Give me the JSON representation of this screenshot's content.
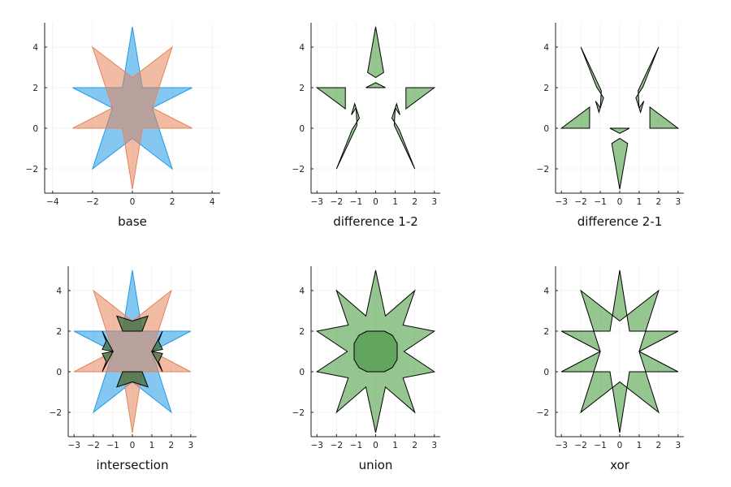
{
  "figure": {
    "colors": {
      "blue": "#1f9be8",
      "orange": "#e6835a",
      "green": "#4fa046",
      "outline": "#000000",
      "grid": "#ebebeb",
      "axis": "#222222"
    }
  },
  "chart_data": [
    {
      "type": "area",
      "xlabel": "base",
      "xlim": [
        -4.4,
        4.4
      ],
      "ylim": [
        -3.2,
        5.2
      ],
      "xticks": [
        -4,
        -2,
        0,
        2,
        4
      ],
      "yticks": [
        -2,
        0,
        2,
        4
      ],
      "grid": true,
      "legend": "none",
      "series": [
        {
          "color": "#1f9be8",
          "points": [
            [
              0,
              5
            ],
            [
              0.5,
              2
            ],
            [
              3,
              2
            ],
            [
              1,
              1
            ],
            [
              2,
              -2
            ],
            [
              0,
              -0.5
            ],
            [
              -2,
              -2
            ],
            [
              -1,
              1
            ],
            [
              -3,
              2
            ],
            [
              -0.5,
              2
            ]
          ]
        },
        {
          "color": "#e6835a",
          "points": [
            [
              0,
              -3
            ],
            [
              0.5,
              0
            ],
            [
              3,
              0
            ],
            [
              1,
              1
            ],
            [
              2,
              4
            ],
            [
              0,
              2.5
            ],
            [
              -2,
              4
            ],
            [
              -1,
              1
            ],
            [
              -3,
              0
            ],
            [
              -0.5,
              0
            ]
          ]
        }
      ]
    },
    {
      "type": "area",
      "xlabel": "difference 1-2",
      "xlim": [
        -3.3,
        3.3
      ],
      "ylim": [
        -3.2,
        5.2
      ],
      "xticks": [
        -3,
        -2,
        -1,
        0,
        1,
        2,
        3
      ],
      "yticks": [
        -2,
        0,
        2,
        4
      ],
      "grid": true,
      "legend": "none",
      "series": [
        {
          "color": "#4fa046",
          "polygons": [
            [
              [
                0,
                5
              ],
              [
                0.41,
                2.75
              ],
              [
                0,
                2.5
              ],
              [
                -0.41,
                2.75
              ]
            ],
            [
              [
                0,
                2.25
              ],
              [
                0.5,
                2
              ],
              [
                -0.5,
                2
              ]
            ],
            [
              [
                1.55,
                2
              ],
              [
                3,
                2
              ],
              [
                1.55,
                0.96
              ]
            ],
            [
              [
                1.07,
                1.21
              ],
              [
                1.24,
                0.66
              ],
              [
                1.0,
                1.0
              ]
            ],
            [
              [
                0.83,
                0.5
              ],
              [
                1.0,
                1.0
              ],
              [
                0.95,
                0.15
              ],
              [
                2,
                -2
              ],
              [
                1.2,
                -0.05
              ]
            ],
            [
              [
                -1.55,
                2
              ],
              [
                -3,
                2
              ],
              [
                -1.55,
                0.96
              ]
            ],
            [
              [
                -1.07,
                1.21
              ],
              [
                -1.24,
                0.66
              ],
              [
                -1.0,
                1.0
              ]
            ],
            [
              [
                -0.83,
                0.5
              ],
              [
                -1.0,
                1.0
              ],
              [
                -0.95,
                0.15
              ],
              [
                -2,
                -2
              ],
              [
                -1.2,
                -0.05
              ]
            ]
          ]
        }
      ]
    },
    {
      "type": "area",
      "xlabel": "difference 2-1",
      "xlim": [
        -3.3,
        3.3
      ],
      "ylim": [
        -3.2,
        5.2
      ],
      "xticks": [
        -3,
        -2,
        -1,
        0,
        1,
        2,
        3
      ],
      "yticks": [
        -2,
        0,
        2,
        4
      ],
      "grid": true,
      "legend": "none",
      "series": [
        {
          "color": "#4fa046",
          "polygons": [
            [
              [
                0,
                -3
              ],
              [
                0.41,
                -0.75
              ],
              [
                0,
                -0.5
              ],
              [
                -0.41,
                -0.75
              ]
            ],
            [
              [
                0,
                -0.25
              ],
              [
                0.5,
                0
              ],
              [
                -0.5,
                0
              ]
            ],
            [
              [
                1.55,
                0
              ],
              [
                3,
                0
              ],
              [
                1.55,
                1.04
              ]
            ],
            [
              [
                1.07,
                0.79
              ],
              [
                1.24,
                1.34
              ],
              [
                1.0,
                1.0
              ]
            ],
            [
              [
                0.83,
                1.5
              ],
              [
                1.0,
                1.0
              ],
              [
                0.95,
                1.85
              ],
              [
                2,
                4
              ],
              [
                1.2,
                2.05
              ]
            ],
            [
              [
                -1.55,
                0
              ],
              [
                -3,
                0
              ],
              [
                -1.55,
                1.04
              ]
            ],
            [
              [
                -1.07,
                0.79
              ],
              [
                -1.24,
                1.34
              ],
              [
                -1.0,
                1.0
              ]
            ],
            [
              [
                -0.83,
                1.5
              ],
              [
                -1.0,
                1.0
              ],
              [
                -0.95,
                1.85
              ],
              [
                -2,
                4
              ],
              [
                -1.2,
                2.05
              ]
            ]
          ]
        }
      ]
    },
    {
      "type": "area",
      "xlabel": "intersection",
      "xlim": [
        -3.3,
        3.3
      ],
      "ylim": [
        -3.2,
        5.2
      ],
      "xticks": [
        -3,
        -2,
        -1,
        0,
        1,
        2,
        3
      ],
      "yticks": [
        -2,
        0,
        2,
        4
      ],
      "grid": true,
      "legend": "none",
      "series": [
        {
          "color": "#1f9be8",
          "points": [
            [
              0,
              5
            ],
            [
              0.5,
              2
            ],
            [
              3,
              2
            ],
            [
              1,
              1
            ],
            [
              2,
              -2
            ],
            [
              0,
              -0.5
            ],
            [
              -2,
              -2
            ],
            [
              -1,
              1
            ],
            [
              -3,
              2
            ],
            [
              -0.5,
              2
            ]
          ]
        },
        {
          "color": "#e6835a",
          "points": [
            [
              0,
              -3
            ],
            [
              0.5,
              0
            ],
            [
              3,
              0
            ],
            [
              1,
              1
            ],
            [
              2,
              4
            ],
            [
              0,
              2.5
            ],
            [
              -2,
              4
            ],
            [
              -1,
              1
            ],
            [
              -3,
              0
            ],
            [
              -0.5,
              0
            ]
          ]
        },
        {
          "color": "#3f6f3f",
          "polygons": [
            [
              [
                0,
                2.5
              ],
              [
                0.8,
                2.75
              ],
              [
                0.5,
                2
              ],
              [
                -0.5,
                2
              ],
              [
                -0.8,
                2.75
              ]
            ],
            [
              [
                1.55,
                2
              ],
              [
                1.0,
                1.0
              ],
              [
                1.55,
                1.1
              ],
              [
                1.35,
                1.5
              ]
            ],
            [
              [
                -1.55,
                2
              ],
              [
                -1.0,
                1.0
              ],
              [
                -1.55,
                1.1
              ],
              [
                -1.35,
                1.5
              ]
            ],
            [
              [
                0,
                -0.5
              ],
              [
                0.8,
                -0.75
              ],
              [
                0.5,
                0
              ],
              [
                -0.5,
                0
              ],
              [
                -0.8,
                -0.75
              ]
            ],
            [
              [
                1.55,
                0
              ],
              [
                1.0,
                1.0
              ],
              [
                1.55,
                0.9
              ],
              [
                1.35,
                0.5
              ]
            ],
            [
              [
                -1.55,
                0
              ],
              [
                -1.0,
                1.0
              ],
              [
                -1.55,
                0.9
              ],
              [
                -1.35,
                0.5
              ]
            ]
          ]
        }
      ]
    },
    {
      "type": "area",
      "xlabel": "union",
      "xlim": [
        -3.3,
        3.3
      ],
      "ylim": [
        -3.2,
        5.2
      ],
      "xticks": [
        -3,
        -2,
        -1,
        0,
        1,
        2,
        3
      ],
      "yticks": [
        -2,
        0,
        2,
        4
      ],
      "grid": true,
      "legend": "none",
      "series": [
        {
          "color": "#4fa046",
          "points": [
            [
              0,
              5
            ],
            [
              0.5,
              2.75
            ],
            [
              2,
              4
            ],
            [
              1.4,
              2.3
            ],
            [
              3,
              2
            ],
            [
              1.45,
              1
            ],
            [
              3,
              0
            ],
            [
              1.4,
              -0.3
            ],
            [
              2,
              -2
            ],
            [
              0.5,
              -0.75
            ],
            [
              0,
              -3
            ],
            [
              -0.5,
              -0.75
            ],
            [
              -2,
              -2
            ],
            [
              -1.4,
              -0.3
            ],
            [
              -3,
              0
            ],
            [
              -1.45,
              1
            ],
            [
              -3,
              2
            ],
            [
              -1.4,
              2.3
            ],
            [
              -2,
              4
            ],
            [
              -0.5,
              2.75
            ]
          ]
        },
        {
          "color": "#3f8f3f",
          "points": [
            [
              0.45,
              2
            ],
            [
              0.85,
              1.8
            ],
            [
              1.1,
              1.4
            ],
            [
              1.1,
              0.6
            ],
            [
              0.85,
              0.2
            ],
            [
              0.45,
              0
            ],
            [
              -0.45,
              0
            ],
            [
              -0.85,
              0.2
            ],
            [
              -1.1,
              0.6
            ],
            [
              -1.1,
              1.4
            ],
            [
              -0.85,
              1.8
            ],
            [
              -0.45,
              2
            ]
          ]
        }
      ]
    },
    {
      "type": "area",
      "xlabel": "xor",
      "xlim": [
        -3.3,
        3.3
      ],
      "ylim": [
        -3.2,
        5.2
      ],
      "xticks": [
        -3,
        -2,
        -1,
        0,
        1,
        2,
        3
      ],
      "yticks": [
        -2,
        0,
        2,
        4
      ],
      "grid": true,
      "legend": "none",
      "series": [
        {
          "color": "#4fa046",
          "points": [
            [
              0,
              5
            ],
            [
              0.5,
              2
            ],
            [
              3,
              2
            ],
            [
              1,
              1
            ],
            [
              2,
              -2
            ],
            [
              0,
              -0.5
            ],
            [
              -2,
              -2
            ],
            [
              -1,
              1
            ],
            [
              -3,
              2
            ],
            [
              -0.5,
              2
            ]
          ]
        },
        {
          "color": "#4fa046",
          "points": [
            [
              0,
              -3
            ],
            [
              0.5,
              0
            ],
            [
              3,
              0
            ],
            [
              1,
              1
            ],
            [
              2,
              4
            ],
            [
              0,
              2.5
            ],
            [
              -2,
              4
            ],
            [
              -1,
              1
            ],
            [
              -3,
              0
            ],
            [
              -0.5,
              0
            ]
          ]
        }
      ]
    }
  ]
}
